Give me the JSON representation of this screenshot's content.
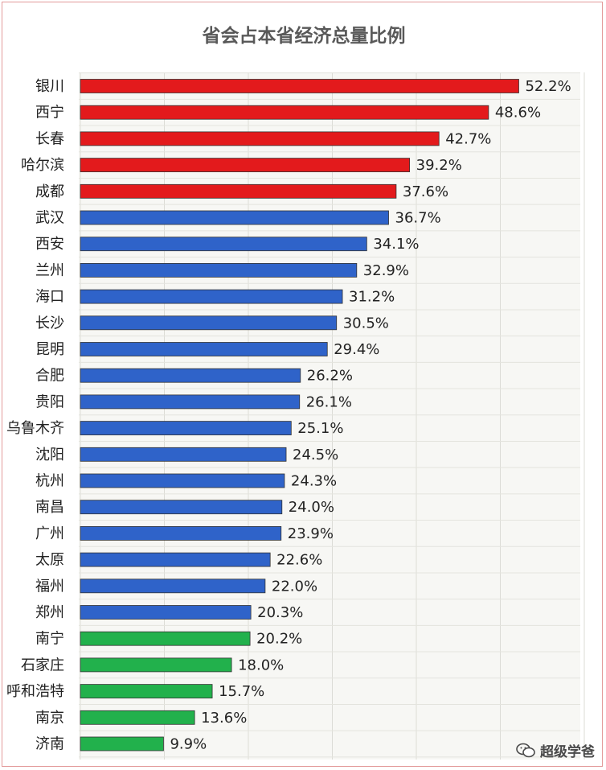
{
  "chart_data": {
    "type": "bar",
    "orientation": "horizontal",
    "title": "省会占本省经济总量比例",
    "categories": [
      "银川",
      "西宁",
      "长春",
      "哈尔滨",
      "成都",
      "武汉",
      "西安",
      "兰州",
      "海口",
      "长沙",
      "昆明",
      "合肥",
      "贵阳",
      "乌鲁木齐",
      "沈阳",
      "杭州",
      "南昌",
      "广州",
      "太原",
      "福州",
      "郑州",
      "南宁",
      "石家庄",
      "呼和浩特",
      "南京",
      "济南"
    ],
    "values": [
      52.2,
      48.6,
      42.7,
      39.2,
      37.6,
      36.7,
      34.1,
      32.9,
      31.2,
      30.5,
      29.4,
      26.2,
      26.1,
      25.1,
      24.5,
      24.3,
      24.0,
      23.9,
      22.6,
      22.0,
      20.3,
      20.2,
      18.0,
      15.7,
      13.6,
      9.9
    ],
    "value_labels": [
      "52.2%",
      "48.6%",
      "42.7%",
      "39.2%",
      "37.6%",
      "36.7%",
      "34.1%",
      "32.9%",
      "31.2%",
      "30.5%",
      "29.4%",
      "26.2%",
      "26.1%",
      "25.1%",
      "24.5%",
      "24.3%",
      "24.0%",
      "23.9%",
      "22.6%",
      "22.0%",
      "20.3%",
      "20.2%",
      "18.0%",
      "15.7%",
      "13.6%",
      "9.9%"
    ],
    "bar_colors": [
      "#e31a1c",
      "#e31a1c",
      "#e31a1c",
      "#e31a1c",
      "#e31a1c",
      "#2f63c9",
      "#2f63c9",
      "#2f63c9",
      "#2f63c9",
      "#2f63c9",
      "#2f63c9",
      "#2f63c9",
      "#2f63c9",
      "#2f63c9",
      "#2f63c9",
      "#2f63c9",
      "#2f63c9",
      "#2f63c9",
      "#2f63c9",
      "#2f63c9",
      "#2f63c9",
      "#22b14c",
      "#22b14c",
      "#22b14c",
      "#22b14c",
      "#22b14c"
    ],
    "xlim": [
      0,
      60
    ],
    "xlabel": "",
    "ylabel": "",
    "grid": true,
    "legend": "none"
  },
  "watermark": {
    "text": "超级学爸",
    "icon": "wechat-icon"
  }
}
